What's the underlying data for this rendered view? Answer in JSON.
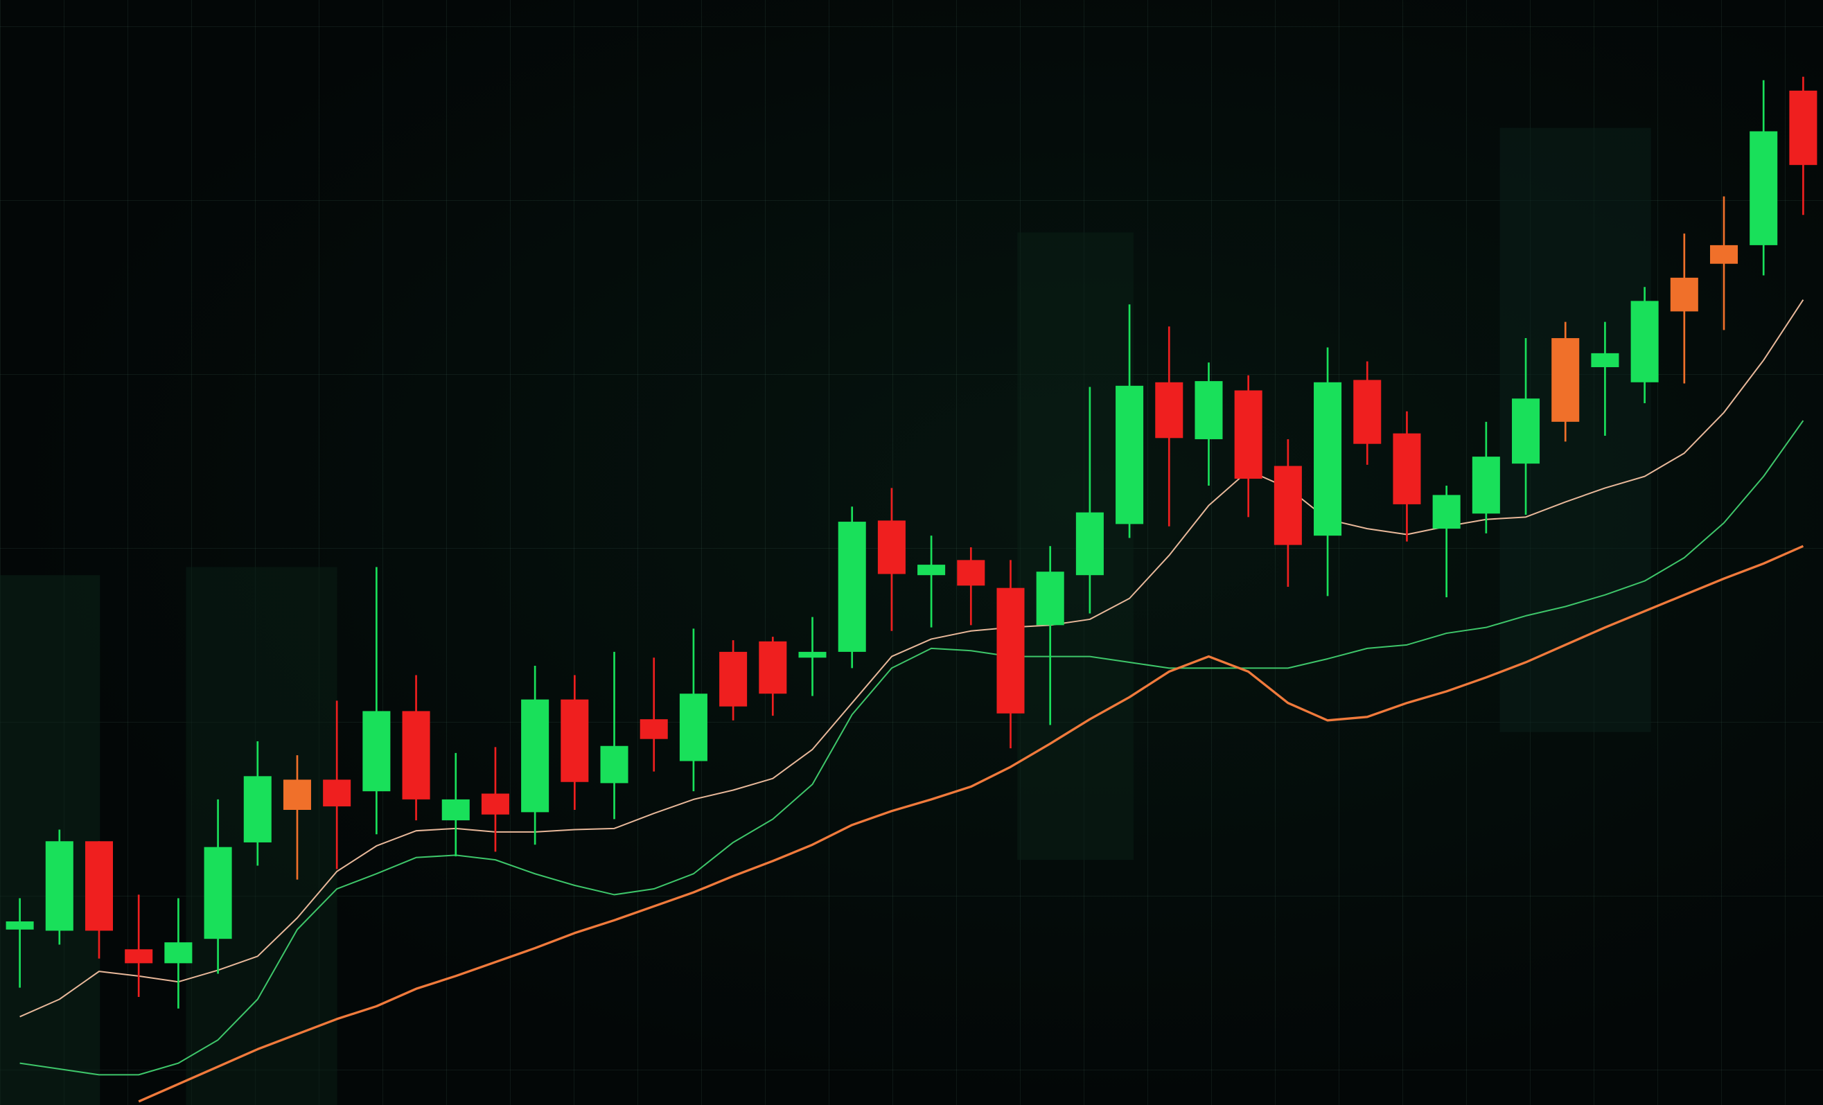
{
  "chart_data": {
    "type": "candlestick",
    "categories": [
      null,
      null,
      null,
      null,
      null,
      null,
      null,
      null,
      null,
      null,
      null,
      null,
      null,
      null,
      null,
      null,
      null,
      null,
      null,
      null,
      null,
      null,
      null,
      null,
      null,
      null,
      null,
      null,
      null,
      null,
      null,
      null,
      null,
      null,
      null,
      null,
      null,
      null,
      null,
      null,
      null,
      null,
      null,
      null,
      null,
      null
    ],
    "open": [
      151,
      150,
      227,
      134,
      122,
      143,
      226,
      280,
      280,
      270,
      339,
      245,
      268,
      252,
      349,
      277,
      332,
      296,
      390,
      399,
      385,
      390,
      503,
      456,
      469,
      445,
      413,
      456,
      500,
      622,
      573,
      615,
      550,
      490,
      624,
      578,
      496,
      509,
      552,
      660,
      635,
      622,
      712,
      740,
      740,
      873
    ],
    "high": [
      178,
      237,
      227,
      181,
      178,
      263,
      313,
      301,
      348,
      463,
      370,
      303,
      308,
      378,
      370,
      390,
      385,
      410,
      400,
      403,
      420,
      515,
      531,
      490,
      480,
      469,
      481,
      618,
      689,
      670,
      639,
      628,
      573,
      652,
      640,
      597,
      533,
      588,
      660,
      674,
      674,
      704,
      750,
      782,
      882,
      885
    ],
    "low": [
      101,
      138,
      126,
      93,
      83,
      113,
      206,
      194,
      203,
      233,
      245,
      214,
      218,
      224,
      254,
      246,
      287,
      270,
      331,
      335,
      352,
      376,
      408,
      411,
      413,
      307,
      327,
      423,
      488,
      498,
      533,
      506,
      446,
      438,
      551,
      485,
      437,
      492,
      508,
      571,
      576,
      604,
      621,
      667,
      714,
      766
    ],
    "close": [
      158,
      227,
      150,
      122,
      140,
      222,
      283,
      254,
      257,
      339,
      263,
      263,
      250,
      349,
      278,
      309,
      315,
      354,
      343,
      354,
      390,
      502,
      457,
      465,
      447,
      337,
      459,
      510,
      619,
      574,
      623,
      539,
      482,
      622,
      569,
      517,
      525,
      558,
      608,
      588,
      647,
      692,
      683,
      724,
      838,
      809
    ],
    "colors": [
      "#19e05a",
      "#19e05a",
      "#ef1f1f",
      "#ef1f1f",
      "#19e05a",
      "#19e05a",
      "#19e05a",
      "#f0702a",
      "#ef1f1f",
      "#19e05a",
      "#ef1f1f",
      "#19e05a",
      "#ef1f1f",
      "#19e05a",
      "#ef1f1f",
      "#19e05a",
      "#ef1f1f",
      "#19e05a",
      "#ef1f1f",
      "#ef1f1f",
      "#19e05a",
      "#19e05a",
      "#ef1f1f",
      "#19e05a",
      "#ef1f1f",
      "#ef1f1f",
      "#19e05a",
      "#19e05a",
      "#19e05a",
      "#ef1f1f",
      "#19e05a",
      "#ef1f1f",
      "#ef1f1f",
      "#19e05a",
      "#ef1f1f",
      "#ef1f1f",
      "#19e05a",
      "#19e05a",
      "#19e05a",
      "#f0702a",
      "#19e05a",
      "#19e05a",
      "#f0702a",
      "#f0702a",
      "#19e05a",
      "#ef1f1f"
    ],
    "lines": [
      {
        "color": "#e8b89a",
        "values": [
          76,
          91,
          115,
          111,
          106,
          116,
          128,
          161,
          201,
          223,
          236,
          238,
          235,
          235,
          237,
          238,
          251,
          263,
          271,
          281,
          306,
          346,
          386,
          401,
          408,
          411,
          413,
          418,
          436,
          473,
          516,
          546,
          531,
          504,
          496,
          491,
          498,
          504,
          506,
          519,
          531,
          541,
          561,
          596,
          641,
          693
        ]
      },
      {
        "color": "#3ec66a",
        "values": [
          36,
          31,
          26,
          26,
          36,
          56,
          91,
          151,
          186,
          199,
          213,
          215,
          211,
          199,
          189,
          181,
          186,
          199,
          226,
          246,
          276,
          336,
          376,
          393,
          391,
          386,
          386,
          386,
          381,
          376,
          376,
          376,
          376,
          384,
          393,
          396,
          406,
          411,
          421,
          429,
          439,
          451,
          471,
          501,
          541,
          589
        ]
      },
      {
        "color": "#f07a3c",
        "values": [
          null,
          null,
          null,
          3,
          18,
          33,
          48,
          61,
          74,
          85,
          100,
          111,
          123,
          135,
          148,
          159,
          171,
          183,
          197,
          210,
          224,
          241,
          253,
          263,
          274,
          291,
          311,
          332,
          351,
          373,
          386,
          373,
          346,
          331,
          334,
          346,
          356,
          368,
          381,
          396,
          411,
          425,
          439,
          453,
          466,
          481
        ]
      }
    ],
    "ylim": [
      0,
      951
    ]
  }
}
